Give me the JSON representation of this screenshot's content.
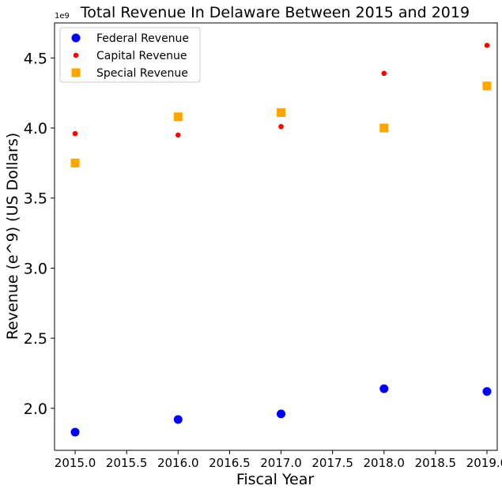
{
  "chart_data": {
    "type": "scatter",
    "title": "Total Revenue In Delaware Between 2015 and 2019",
    "xlabel": "Fiscal Year",
    "ylabel": "Revenue (e^9) (US Dollars)",
    "y_offset_label": "1e9",
    "x": [
      2015,
      2016,
      2017,
      2018,
      2019
    ],
    "xlim": [
      2014.8,
      2019.1
    ],
    "ylim": [
      1.7,
      4.75
    ],
    "x_ticks": [
      2015.0,
      2015.5,
      2016.0,
      2016.5,
      2017.0,
      2017.5,
      2018.0,
      2018.5,
      2019.0
    ],
    "x_tick_labels": [
      "2015.0",
      "2015.5",
      "2016.0",
      "2016.5",
      "2017.0",
      "2017.5",
      "2018.0",
      "2018.5",
      "2019.0"
    ],
    "y_ticks": [
      2.0,
      2.5,
      3.0,
      3.5,
      4.0,
      4.5
    ],
    "y_tick_labels": [
      "2.0",
      "2.5",
      "3.0",
      "3.5",
      "4.0",
      "4.5"
    ],
    "grid": false,
    "legend_position": "top-left",
    "series": [
      {
        "name": "Federal Revenue",
        "marker": "circle-large",
        "color": "#0000ff",
        "values": [
          1.83,
          1.92,
          1.96,
          2.14,
          2.12
        ]
      },
      {
        "name": "Capital Revenue",
        "marker": "circle-small",
        "color": "#ff0000",
        "values": [
          3.96,
          3.95,
          4.01,
          4.39,
          4.59
        ]
      },
      {
        "name": "Special Revenue",
        "marker": "square",
        "color": "#ffa500",
        "values": [
          3.75,
          4.08,
          4.11,
          4.0,
          4.3
        ]
      }
    ]
  }
}
